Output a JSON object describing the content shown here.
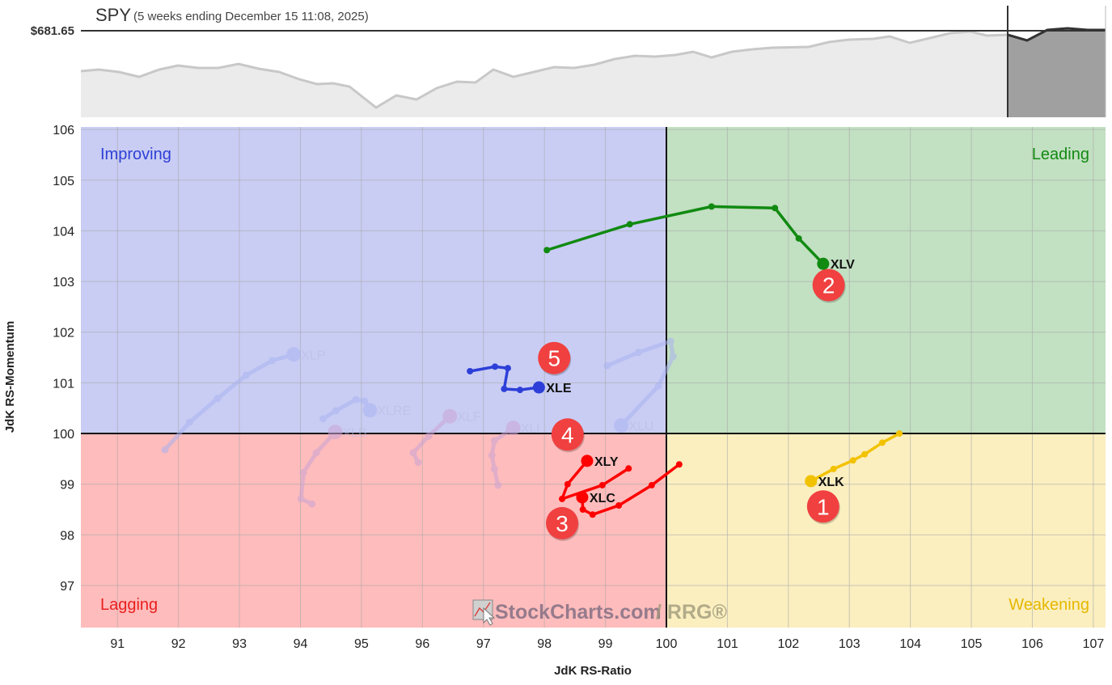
{
  "header": {
    "symbol": "SPY",
    "subtitle": "(5 weeks ending December 15 11:08, 2025)",
    "price_label": "$681.65"
  },
  "chart_data": {
    "type": "scatter",
    "subtype": "relative-rotation-graph",
    "xlabel": "JdK RS-Ratio",
    "ylabel": "JdK RS-Momentum",
    "xlim": [
      90.4,
      107.2
    ],
    "ylim": [
      96.17,
      106.05
    ],
    "xticks": [
      91,
      92,
      93,
      94,
      95,
      96,
      97,
      98,
      99,
      100,
      101,
      102,
      103,
      104,
      105,
      106,
      107
    ],
    "yticks": [
      97,
      98,
      99,
      100,
      101,
      102,
      103,
      104,
      105,
      106
    ],
    "grid": true,
    "center": [
      100,
      100
    ],
    "quadrants": [
      {
        "name": "Improving",
        "color": "#2e3fd6",
        "fill": "#c9cdf4"
      },
      {
        "name": "Leading",
        "color": "#138a13",
        "fill": "#c2e0c2"
      },
      {
        "name": "Lagging",
        "color": "#e8201e",
        "fill": "#ffbcbc"
      },
      {
        "name": "Weakening",
        "color": "#e6b800",
        "fill": "#fbefc0"
      }
    ],
    "series": [
      {
        "name": "XLV",
        "color": "#118a11",
        "faded": false,
        "points": [
          [
            98.04,
            103.62
          ],
          [
            99.4,
            104.13
          ],
          [
            100.74,
            104.48
          ],
          [
            101.78,
            104.45
          ],
          [
            102.17,
            103.85
          ],
          [
            102.57,
            103.35
          ]
        ]
      },
      {
        "name": "XLK",
        "color": "#f2c200",
        "faded": false,
        "points": [
          [
            103.82,
            100.0
          ],
          [
            103.54,
            99.82
          ],
          [
            103.25,
            99.59
          ],
          [
            103.06,
            99.47
          ],
          [
            102.74,
            99.3
          ],
          [
            102.37,
            99.06
          ]
        ]
      },
      {
        "name": "XLE",
        "color": "#2d3fd8",
        "faded": false,
        "points": [
          [
            96.78,
            101.23
          ],
          [
            97.19,
            101.32
          ],
          [
            97.4,
            101.29
          ],
          [
            97.34,
            100.88
          ],
          [
            97.6,
            100.86
          ],
          [
            97.91,
            100.91
          ]
        ]
      },
      {
        "name": "XLY",
        "color": "#ff0000",
        "faded": false,
        "points": [
          [
            99.38,
            99.31
          ],
          [
            98.95,
            98.98
          ],
          [
            98.29,
            98.71
          ],
          [
            98.38,
            99.0
          ],
          [
            98.7,
            99.46
          ]
        ]
      },
      {
        "name": "XLC",
        "color": "#ff0000",
        "faded": false,
        "points": [
          [
            100.21,
            99.39
          ],
          [
            99.76,
            98.98
          ],
          [
            99.22,
            98.58
          ],
          [
            98.79,
            98.4
          ],
          [
            98.63,
            98.5
          ],
          [
            98.62,
            98.74
          ]
        ]
      },
      {
        "name": "XLU",
        "color": "#a9b2f0",
        "faded": true,
        "points": [
          [
            99.03,
            101.34
          ],
          [
            99.54,
            101.6
          ],
          [
            100.07,
            101.82
          ],
          [
            100.11,
            101.52
          ],
          [
            99.87,
            100.94
          ],
          [
            99.26,
            100.16
          ]
        ]
      },
      {
        "name": "XLI",
        "color": "#c9a4d4",
        "faded": true,
        "points": [
          [
            97.24,
            98.98
          ],
          [
            97.18,
            99.3
          ],
          [
            97.14,
            99.57
          ],
          [
            97.18,
            99.86
          ],
          [
            97.49,
            100.11
          ]
        ]
      },
      {
        "name": "XLF",
        "color": "#c9a4d4",
        "faded": true,
        "points": [
          [
            95.93,
            99.43
          ],
          [
            95.85,
            99.62
          ],
          [
            96.1,
            99.95
          ],
          [
            96.45,
            100.34
          ]
        ]
      },
      {
        "name": "XLB",
        "color": "#c9a4d4",
        "faded": true,
        "points": [
          [
            94.19,
            98.61
          ],
          [
            94.01,
            98.71
          ],
          [
            94.05,
            99.23
          ],
          [
            94.26,
            99.62
          ],
          [
            94.57,
            100.03
          ]
        ]
      },
      {
        "name": "XLRE",
        "color": "#a9b2f0",
        "faded": true,
        "points": [
          [
            94.37,
            100.29
          ],
          [
            94.58,
            100.45
          ],
          [
            94.91,
            100.67
          ],
          [
            95.05,
            100.64
          ],
          [
            95.14,
            100.46
          ]
        ]
      },
      {
        "name": "XLP",
        "color": "#a9b2f0",
        "faded": true,
        "points": [
          [
            91.78,
            99.68
          ],
          [
            92.18,
            100.22
          ],
          [
            92.64,
            100.69
          ],
          [
            93.11,
            101.15
          ],
          [
            93.54,
            101.44
          ],
          [
            93.89,
            101.56
          ]
        ]
      }
    ],
    "annotations": [
      {
        "label": "1",
        "x": 102.57,
        "y": 98.56
      },
      {
        "label": "2",
        "x": 102.66,
        "y": 102.93
      },
      {
        "label": "3",
        "x": 98.29,
        "y": 98.23
      },
      {
        "label": "4",
        "x": 98.38,
        "y": 99.98
      },
      {
        "label": "5",
        "x": 98.16,
        "y": 101.49
      }
    ],
    "annotation_color": "#f04040"
  },
  "watermark": {
    "brand": "StockCharts.com",
    "product": "/ RRG®"
  }
}
